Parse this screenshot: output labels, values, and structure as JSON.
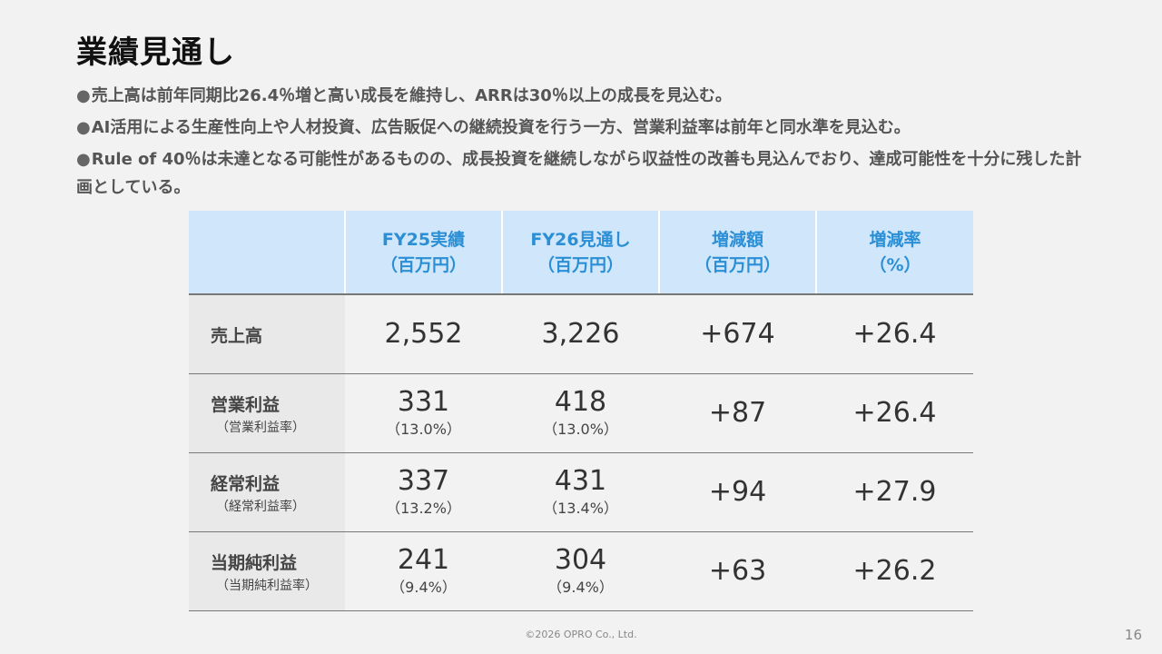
{
  "title": "業績見通し",
  "bullets": [
    {
      "dot": "●",
      "text": "売上高は前年同期比26.4％増と高い成長を維持し、ARRは30％以上の成長を見込む。"
    },
    {
      "dot": "●",
      "text": "AI活用による生産性向上や人材投資、広告販促への継続投資を行う一方、営業利益率は前年と同水準を見込む。"
    },
    {
      "dot": "●",
      "text": "Rule of 40％は未達となる可能性があるものの、成長投資を継続しながら収益性の改善も見込んでおり、達成可能性を十分に残した計画としている。"
    }
  ],
  "table": {
    "headers": [
      {
        "line1": "",
        "line2": ""
      },
      {
        "line1": "FY25実績",
        "line2": "（百万円）"
      },
      {
        "line1": "FY26見通し",
        "line2": "（百万円）"
      },
      {
        "line1": "増減額",
        "line2": "（百万円）"
      },
      {
        "line1": "増減率",
        "line2": "（%）"
      }
    ],
    "rows": [
      {
        "label": "売上高",
        "sublabel": "",
        "fy25": "2,552",
        "fy25_sub": "",
        "fy26": "3,226",
        "fy26_sub": "",
        "diff": "+674",
        "rate": "+26.4"
      },
      {
        "label": "営業利益",
        "sublabel": "（営業利益率）",
        "fy25": "331",
        "fy25_sub": "（13.0%）",
        "fy26": "418",
        "fy26_sub": "（13.0%）",
        "diff": "+87",
        "rate": "+26.4"
      },
      {
        "label": "経常利益",
        "sublabel": "（経常利益率）",
        "fy25": "337",
        "fy25_sub": "（13.2%）",
        "fy26": "431",
        "fy26_sub": "（13.4%）",
        "diff": "+94",
        "rate": "+27.9"
      },
      {
        "label": "当期純利益",
        "sublabel": "（当期純利益率）",
        "fy25": "241",
        "fy25_sub": "（9.4%）",
        "fy26": "304",
        "fy26_sub": "（9.4%）",
        "diff": "+63",
        "rate": "+26.2"
      }
    ]
  },
  "footer": "©2026 OPRO Co., Ltd.",
  "page_number": "16",
  "colors": {
    "header_bg": "#cfe6fb",
    "header_text": "#2b8fd6",
    "label_bg": "#e9e9e9",
    "page_bg": "#f2f2f2"
  }
}
